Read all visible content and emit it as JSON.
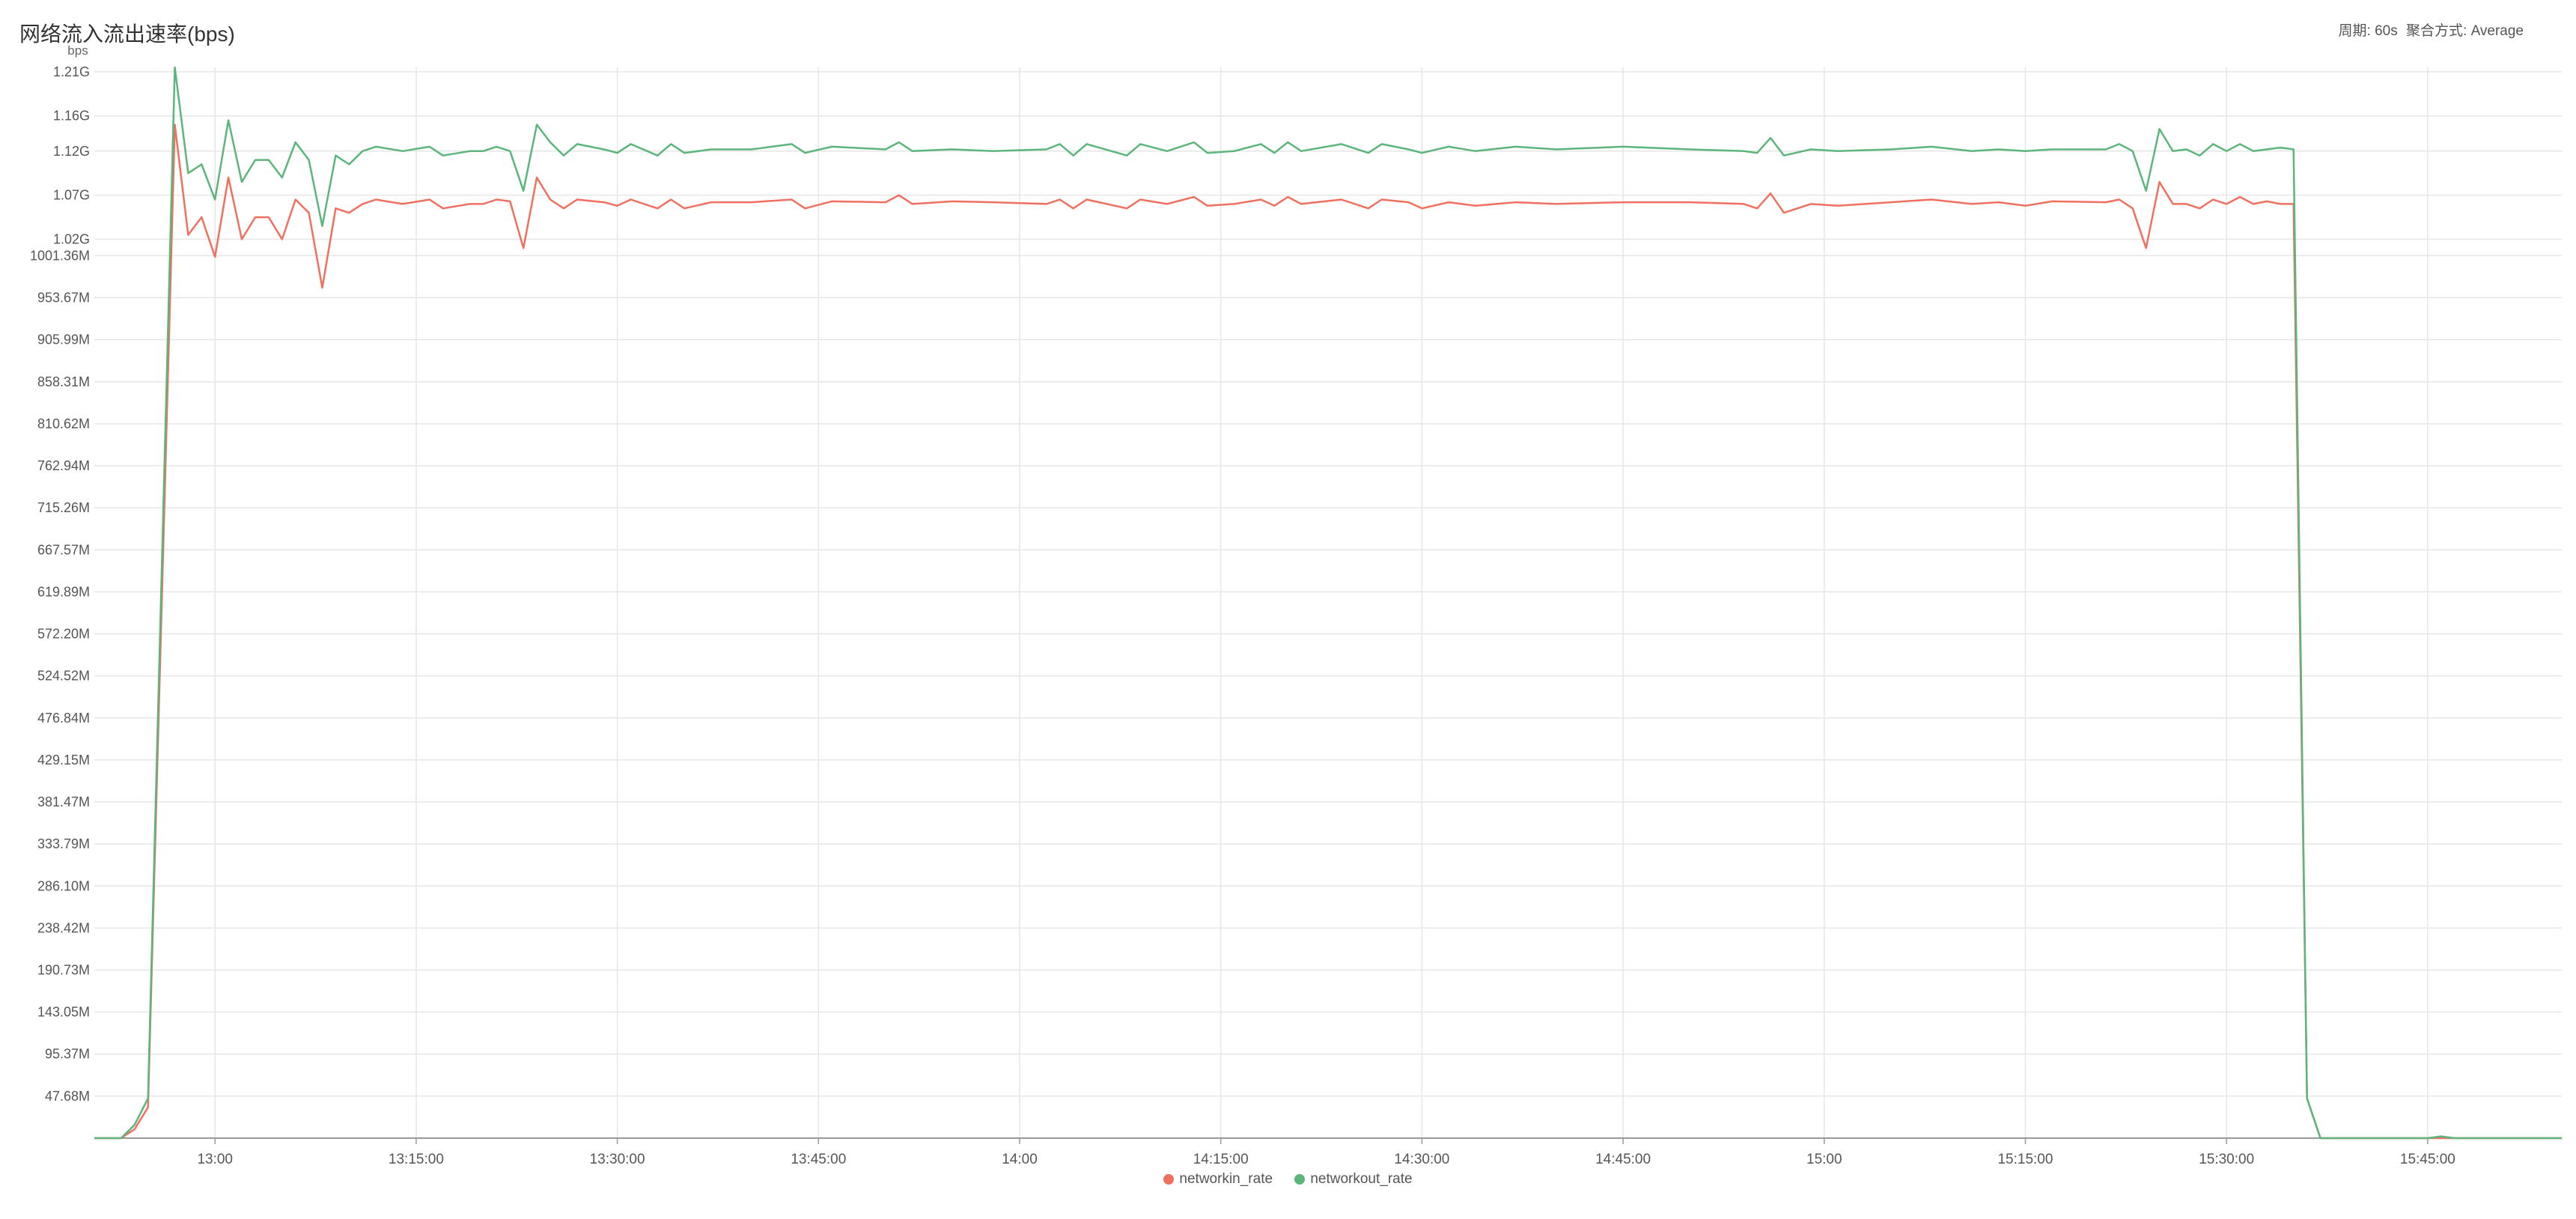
{
  "header": {
    "title": "网络流入流出速率(bps)",
    "period": "周期: 60s",
    "aggregation": "聚合方式: Average"
  },
  "chart_data": {
    "type": "line",
    "title": "网络流入流出速率(bps)",
    "ylabel": "bps",
    "xlabel": "",
    "ylim": [
      0,
      1.215
    ],
    "y_unit": "G",
    "y_ticks": [
      {
        "v": 0.0477,
        "label": "47.68M"
      },
      {
        "v": 0.0954,
        "label": "95.37M"
      },
      {
        "v": 0.1431,
        "label": "143.05M"
      },
      {
        "v": 0.1907,
        "label": "190.73M"
      },
      {
        "v": 0.2384,
        "label": "238.42M"
      },
      {
        "v": 0.2861,
        "label": "286.10M"
      },
      {
        "v": 0.3338,
        "label": "333.79M"
      },
      {
        "v": 0.3815,
        "label": "381.47M"
      },
      {
        "v": 0.4292,
        "label": "429.15M"
      },
      {
        "v": 0.4768,
        "label": "476.84M"
      },
      {
        "v": 0.5245,
        "label": "524.52M"
      },
      {
        "v": 0.5722,
        "label": "572.20M"
      },
      {
        "v": 0.6199,
        "label": "619.89M"
      },
      {
        "v": 0.6676,
        "label": "667.57M"
      },
      {
        "v": 0.7153,
        "label": "715.26M"
      },
      {
        "v": 0.7629,
        "label": "762.94M"
      },
      {
        "v": 0.8106,
        "label": "810.62M"
      },
      {
        "v": 0.8583,
        "label": "858.31M"
      },
      {
        "v": 0.906,
        "label": "905.99M"
      },
      {
        "v": 0.9537,
        "label": "953.67M"
      },
      {
        "v": 1.0014,
        "label": "1001.36M"
      },
      {
        "v": 1.02,
        "label": "1.02G"
      },
      {
        "v": 1.07,
        "label": "1.07G"
      },
      {
        "v": 1.12,
        "label": "1.12G"
      },
      {
        "v": 1.16,
        "label": "1.16G"
      },
      {
        "v": 1.21,
        "label": "1.21G"
      }
    ],
    "x_ticks": [
      {
        "t": "13:00",
        "label": "13:00"
      },
      {
        "t": "13:15",
        "label": "13:15:00"
      },
      {
        "t": "13:30",
        "label": "13:30:00"
      },
      {
        "t": "13:45",
        "label": "13:45:00"
      },
      {
        "t": "14:00",
        "label": "14:00"
      },
      {
        "t": "14:15",
        "label": "14:15:00"
      },
      {
        "t": "14:30",
        "label": "14:30:00"
      },
      {
        "t": "14:45",
        "label": "14:45:00"
      },
      {
        "t": "15:00",
        "label": "15:00"
      },
      {
        "t": "15:15",
        "label": "15:15:00"
      },
      {
        "t": "15:30",
        "label": "15:30:00"
      },
      {
        "t": "15:45",
        "label": "15:45:00"
      }
    ],
    "xlim": [
      "12:51",
      "15:55"
    ],
    "legend_position": "bottom-center",
    "grid": true,
    "series": [
      {
        "name": "networkin_rate",
        "color": "#f07060",
        "points": [
          [
            "12:51",
            0
          ],
          [
            "12:53",
            0
          ],
          [
            "12:54",
            0.01
          ],
          [
            "12:55",
            0.035
          ],
          [
            "12:57",
            1.15
          ],
          [
            "12:58",
            1.025
          ],
          [
            "12:59",
            1.045
          ],
          [
            "13:00",
            1.0
          ],
          [
            "13:01",
            1.09
          ],
          [
            "13:02",
            1.02
          ],
          [
            "13:03",
            1.045
          ],
          [
            "13:04",
            1.045
          ],
          [
            "13:05",
            1.02
          ],
          [
            "13:06",
            1.065
          ],
          [
            "13:07",
            1.05
          ],
          [
            "13:08",
            0.965
          ],
          [
            "13:09",
            1.055
          ],
          [
            "13:10",
            1.05
          ],
          [
            "13:11",
            1.06
          ],
          [
            "13:12",
            1.065
          ],
          [
            "13:14",
            1.06
          ],
          [
            "13:16",
            1.065
          ],
          [
            "13:17",
            1.055
          ],
          [
            "13:19",
            1.06
          ],
          [
            "13:20",
            1.06
          ],
          [
            "13:21",
            1.065
          ],
          [
            "13:22",
            1.063
          ],
          [
            "13:23",
            1.01
          ],
          [
            "13:24",
            1.09
          ],
          [
            "13:25",
            1.065
          ],
          [
            "13:26",
            1.055
          ],
          [
            "13:27",
            1.065
          ],
          [
            "13:29",
            1.062
          ],
          [
            "13:30",
            1.058
          ],
          [
            "13:31",
            1.065
          ],
          [
            "13:33",
            1.055
          ],
          [
            "13:34",
            1.065
          ],
          [
            "13:35",
            1.055
          ],
          [
            "13:37",
            1.062
          ],
          [
            "13:40",
            1.062
          ],
          [
            "13:43",
            1.065
          ],
          [
            "13:44",
            1.055
          ],
          [
            "13:46",
            1.063
          ],
          [
            "13:50",
            1.062
          ],
          [
            "13:51",
            1.07
          ],
          [
            "13:52",
            1.06
          ],
          [
            "13:55",
            1.063
          ],
          [
            "13:58",
            1.062
          ],
          [
            "14:02",
            1.06
          ],
          [
            "14:03",
            1.065
          ],
          [
            "14:04",
            1.055
          ],
          [
            "14:05",
            1.065
          ],
          [
            "14:08",
            1.055
          ],
          [
            "14:09",
            1.065
          ],
          [
            "14:11",
            1.06
          ],
          [
            "14:13",
            1.068
          ],
          [
            "14:14",
            1.058
          ],
          [
            "14:16",
            1.06
          ],
          [
            "14:18",
            1.065
          ],
          [
            "14:19",
            1.058
          ],
          [
            "14:20",
            1.068
          ],
          [
            "14:21",
            1.06
          ],
          [
            "14:24",
            1.065
          ],
          [
            "14:26",
            1.055
          ],
          [
            "14:27",
            1.065
          ],
          [
            "14:29",
            1.062
          ],
          [
            "14:30",
            1.055
          ],
          [
            "14:32",
            1.062
          ],
          [
            "14:34",
            1.058
          ],
          [
            "14:37",
            1.062
          ],
          [
            "14:40",
            1.06
          ],
          [
            "14:45",
            1.062
          ],
          [
            "14:50",
            1.062
          ],
          [
            "14:54",
            1.06
          ],
          [
            "14:55",
            1.055
          ],
          [
            "14:56",
            1.072
          ],
          [
            "14:57",
            1.05
          ],
          [
            "14:59",
            1.06
          ],
          [
            "15:01",
            1.058
          ],
          [
            "15:05",
            1.062
          ],
          [
            "15:08",
            1.065
          ],
          [
            "15:11",
            1.06
          ],
          [
            "15:13",
            1.062
          ],
          [
            "15:15",
            1.058
          ],
          [
            "15:17",
            1.063
          ],
          [
            "15:21",
            1.062
          ],
          [
            "15:22",
            1.065
          ],
          [
            "15:23",
            1.055
          ],
          [
            "15:24",
            1.01
          ],
          [
            "15:25",
            1.085
          ],
          [
            "15:26",
            1.06
          ],
          [
            "15:27",
            1.06
          ],
          [
            "15:28",
            1.055
          ],
          [
            "15:29",
            1.065
          ],
          [
            "15:30",
            1.06
          ],
          [
            "15:31",
            1.068
          ],
          [
            "15:32",
            1.06
          ],
          [
            "15:33",
            1.063
          ],
          [
            "15:34",
            1.06
          ],
          [
            "15:35",
            1.06
          ],
          [
            "15:36",
            0.045
          ],
          [
            "15:37",
            0
          ],
          [
            "15:55",
            0
          ]
        ]
      },
      {
        "name": "networkout_rate",
        "color": "#5cb57a",
        "points": [
          [
            "12:51",
            0
          ],
          [
            "12:53",
            0
          ],
          [
            "12:54",
            0.015
          ],
          [
            "12:55",
            0.045
          ],
          [
            "12:57",
            1.215
          ],
          [
            "12:58",
            1.095
          ],
          [
            "12:59",
            1.105
          ],
          [
            "13:00",
            1.065
          ],
          [
            "13:01",
            1.155
          ],
          [
            "13:02",
            1.085
          ],
          [
            "13:03",
            1.11
          ],
          [
            "13:04",
            1.11
          ],
          [
            "13:05",
            1.09
          ],
          [
            "13:06",
            1.13
          ],
          [
            "13:07",
            1.11
          ],
          [
            "13:08",
            1.035
          ],
          [
            "13:09",
            1.115
          ],
          [
            "13:10",
            1.105
          ],
          [
            "13:11",
            1.12
          ],
          [
            "13:12",
            1.125
          ],
          [
            "13:14",
            1.12
          ],
          [
            "13:16",
            1.125
          ],
          [
            "13:17",
            1.115
          ],
          [
            "13:19",
            1.12
          ],
          [
            "13:20",
            1.12
          ],
          [
            "13:21",
            1.125
          ],
          [
            "13:22",
            1.12
          ],
          [
            "13:23",
            1.075
          ],
          [
            "13:24",
            1.15
          ],
          [
            "13:25",
            1.13
          ],
          [
            "13:26",
            1.115
          ],
          [
            "13:27",
            1.128
          ],
          [
            "13:29",
            1.122
          ],
          [
            "13:30",
            1.118
          ],
          [
            "13:31",
            1.128
          ],
          [
            "13:33",
            1.115
          ],
          [
            "13:34",
            1.128
          ],
          [
            "13:35",
            1.118
          ],
          [
            "13:37",
            1.122
          ],
          [
            "13:40",
            1.122
          ],
          [
            "13:43",
            1.128
          ],
          [
            "13:44",
            1.118
          ],
          [
            "13:46",
            1.125
          ],
          [
            "13:50",
            1.122
          ],
          [
            "13:51",
            1.13
          ],
          [
            "13:52",
            1.12
          ],
          [
            "13:55",
            1.122
          ],
          [
            "13:58",
            1.12
          ],
          [
            "14:02",
            1.122
          ],
          [
            "14:03",
            1.128
          ],
          [
            "14:04",
            1.115
          ],
          [
            "14:05",
            1.128
          ],
          [
            "14:08",
            1.115
          ],
          [
            "14:09",
            1.128
          ],
          [
            "14:11",
            1.12
          ],
          [
            "14:13",
            1.13
          ],
          [
            "14:14",
            1.118
          ],
          [
            "14:16",
            1.12
          ],
          [
            "14:18",
            1.128
          ],
          [
            "14:19",
            1.118
          ],
          [
            "14:20",
            1.13
          ],
          [
            "14:21",
            1.12
          ],
          [
            "14:24",
            1.128
          ],
          [
            "14:26",
            1.118
          ],
          [
            "14:27",
            1.128
          ],
          [
            "14:29",
            1.122
          ],
          [
            "14:30",
            1.118
          ],
          [
            "14:32",
            1.125
          ],
          [
            "14:34",
            1.12
          ],
          [
            "14:37",
            1.125
          ],
          [
            "14:40",
            1.122
          ],
          [
            "14:45",
            1.125
          ],
          [
            "14:50",
            1.122
          ],
          [
            "14:54",
            1.12
          ],
          [
            "14:55",
            1.118
          ],
          [
            "14:56",
            1.135
          ],
          [
            "14:57",
            1.115
          ],
          [
            "14:59",
            1.122
          ],
          [
            "15:01",
            1.12
          ],
          [
            "15:05",
            1.122
          ],
          [
            "15:08",
            1.125
          ],
          [
            "15:11",
            1.12
          ],
          [
            "15:13",
            1.122
          ],
          [
            "15:15",
            1.12
          ],
          [
            "15:17",
            1.122
          ],
          [
            "15:21",
            1.122
          ],
          [
            "15:22",
            1.128
          ],
          [
            "15:23",
            1.12
          ],
          [
            "15:24",
            1.075
          ],
          [
            "15:25",
            1.145
          ],
          [
            "15:26",
            1.12
          ],
          [
            "15:27",
            1.122
          ],
          [
            "15:28",
            1.115
          ],
          [
            "15:29",
            1.128
          ],
          [
            "15:30",
            1.12
          ],
          [
            "15:31",
            1.128
          ],
          [
            "15:32",
            1.12
          ],
          [
            "15:33",
            1.122
          ],
          [
            "15:34",
            1.124
          ],
          [
            "15:35",
            1.122
          ],
          [
            "15:36",
            0.045
          ],
          [
            "15:37",
            0
          ],
          [
            "15:45",
            0
          ],
          [
            "15:46",
            0.002
          ],
          [
            "15:47",
            0
          ],
          [
            "15:55",
            0
          ]
        ]
      }
    ]
  }
}
